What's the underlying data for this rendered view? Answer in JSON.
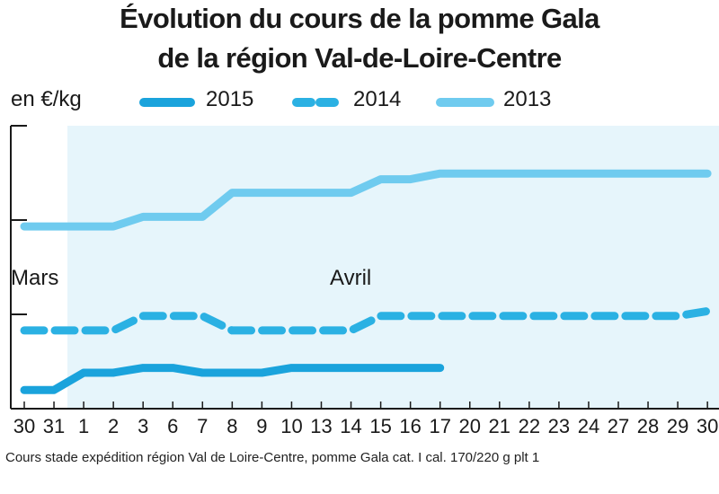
{
  "title_line1": "Évolution du cours de la pomme Gala",
  "title_line2": "de la région Val-de-Loire-Centre",
  "unit_label": "en €/kg",
  "months": {
    "mars": "Mars",
    "avril": "Avril"
  },
  "footnote": "Cours stade expédition région Val de Loire-Centre, pomme Gala cat. I cal. 170/220 g plt 1",
  "colors": {
    "series_2015": "#1aa3dc",
    "series_2014": "#2bb1e3",
    "series_2013": "#6fcbef",
    "plot_background": "#e6f5fb",
    "axis": "#1a1a1a"
  },
  "chart_data": {
    "type": "line",
    "title": "Évolution du cours de la pomme Gala de la région Val-de-Loire-Centre",
    "ylabel": "en €/kg",
    "xlabel": "",
    "categories": [
      "30",
      "31",
      "1",
      "2",
      "3",
      "6",
      "7",
      "8",
      "9",
      "10",
      "13",
      "14",
      "15",
      "16",
      "17",
      "20",
      "21",
      "22",
      "23",
      "24",
      "27",
      "28",
      "29",
      "30"
    ],
    "y_ticks_labeled": false,
    "grid": false,
    "legend_position": "top",
    "series": [
      {
        "name": "2015",
        "style": "solid-thick",
        "values": [
          0.1,
          0.1,
          0.28,
          0.28,
          0.33,
          0.33,
          0.28,
          0.28,
          0.28,
          0.33,
          0.33,
          0.33,
          0.33,
          0.33,
          0.33,
          null,
          null,
          null,
          null,
          null,
          null,
          null,
          null,
          null
        ]
      },
      {
        "name": "2014",
        "style": "dashed-thick",
        "values": [
          0.72,
          0.72,
          0.72,
          0.72,
          0.87,
          0.87,
          0.87,
          0.72,
          0.72,
          0.72,
          0.72,
          0.72,
          0.87,
          0.87,
          0.87,
          0.87,
          0.87,
          0.87,
          0.87,
          0.87,
          0.87,
          0.87,
          0.87,
          0.92
        ]
      },
      {
        "name": "2013",
        "style": "solid-light",
        "values": [
          1.8,
          1.8,
          1.8,
          1.8,
          1.9,
          1.9,
          1.9,
          2.15,
          2.15,
          2.15,
          2.15,
          2.15,
          2.29,
          2.29,
          2.35,
          2.35,
          2.35,
          2.35,
          2.35,
          2.35,
          2.35,
          2.35,
          2.35,
          2.35
        ]
      }
    ]
  }
}
